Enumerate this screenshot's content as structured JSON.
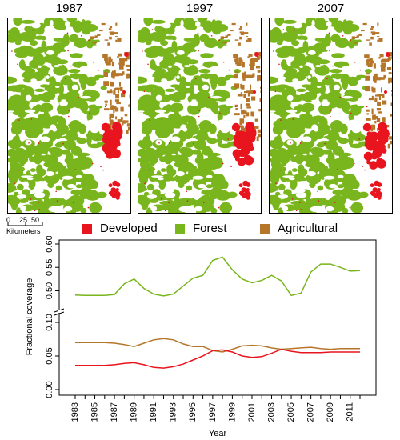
{
  "maps": [
    {
      "year_label": "1987"
    },
    {
      "year_label": "1997"
    },
    {
      "year_label": "2007"
    }
  ],
  "scale_bar": {
    "ticks": [
      "0",
      "25",
      "50"
    ],
    "unit_label": "Kilometers"
  },
  "legend": [
    {
      "label": "Developed",
      "color": "#e8141e"
    },
    {
      "label": "Forest",
      "color": "#79b51c"
    },
    {
      "label": "Agricultural",
      "color": "#b5762a"
    }
  ],
  "chart_data": {
    "type": "line",
    "xlabel": "Year",
    "ylabel": "Fractional coverage",
    "x": [
      1983,
      1984,
      1985,
      1986,
      1987,
      1988,
      1989,
      1990,
      1991,
      1992,
      1993,
      1994,
      1995,
      1996,
      1997,
      1998,
      1999,
      2000,
      2001,
      2002,
      2003,
      2004,
      2005,
      2006,
      2007,
      2008,
      2009,
      2010,
      2011,
      2012
    ],
    "x_tick_labels": [
      "1983",
      "1985",
      "1987",
      "1989",
      "1991",
      "1993",
      "1995",
      "1997",
      "1999",
      "2001",
      "2003",
      "2005",
      "2007",
      "2009",
      "2011"
    ],
    "axis_break": "between 0.10 and 0.50",
    "lower_panel": {
      "ylim": [
        0,
        0.1
      ],
      "y_tick_labels": [
        "0.00",
        "0.05",
        "0.10"
      ]
    },
    "upper_panel": {
      "ylim": [
        0.47,
        0.6
      ],
      "y_tick_labels": [
        "0.50",
        "0.55",
        "0.60"
      ]
    },
    "series": [
      {
        "key": "forest",
        "color": "#79b51c",
        "values": [
          0.491,
          0.49,
          0.49,
          0.49,
          0.492,
          0.515,
          0.525,
          0.505,
          0.493,
          0.489,
          0.493,
          0.51,
          0.527,
          0.533,
          0.565,
          0.572,
          0.545,
          0.525,
          0.517,
          0.522,
          0.533,
          0.521,
          0.49,
          0.495,
          0.54,
          0.557,
          0.557,
          0.55,
          0.542,
          0.543
        ]
      },
      {
        "key": "agricultural",
        "color": "#b5762a",
        "values": [
          0.07,
          0.07,
          0.07,
          0.07,
          0.069,
          0.067,
          0.064,
          0.069,
          0.074,
          0.076,
          0.074,
          0.068,
          0.064,
          0.064,
          0.058,
          0.056,
          0.06,
          0.065,
          0.066,
          0.065,
          0.062,
          0.06,
          0.061,
          0.062,
          0.063,
          0.061,
          0.06,
          0.061,
          0.061,
          0.061
        ]
      },
      {
        "key": "developed",
        "color": "#e8141e",
        "values": [
          0.036,
          0.036,
          0.036,
          0.036,
          0.037,
          0.039,
          0.04,
          0.037,
          0.033,
          0.032,
          0.034,
          0.038,
          0.044,
          0.05,
          0.058,
          0.059,
          0.056,
          0.05,
          0.048,
          0.049,
          0.054,
          0.06,
          0.057,
          0.055,
          0.055,
          0.055,
          0.056,
          0.056,
          0.056,
          0.056
        ]
      }
    ]
  }
}
